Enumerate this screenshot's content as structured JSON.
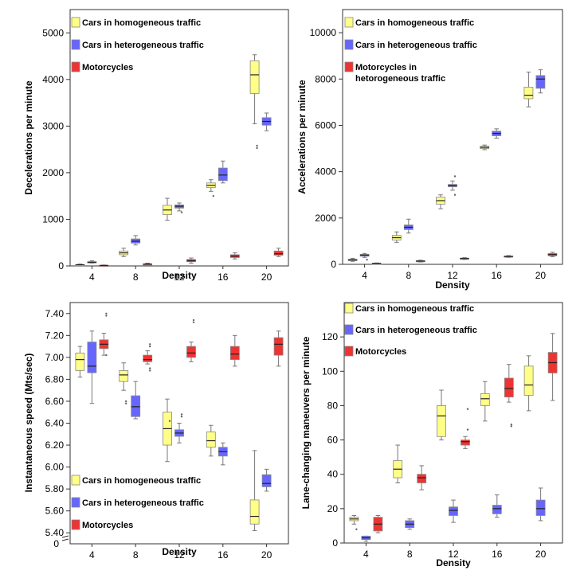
{
  "chart_data": [
    {
      "type": "box",
      "panel": "top-left",
      "xlabel": "Density",
      "ylabel": "Decelerations per minute",
      "categories": [
        "4",
        "8",
        "12",
        "16",
        "20"
      ],
      "ylim": [
        0,
        5500
      ],
      "yticks": [
        0,
        1000,
        2000,
        3000,
        4000,
        5000
      ],
      "legend_position": "top-left",
      "series": [
        {
          "name": "Cars in homogeneous traffic",
          "color": "#ffff88",
          "boxes": [
            {
              "min": 15,
              "q1": 20,
              "median": 25,
              "q3": 30,
              "max": 40
            },
            {
              "min": 200,
              "q1": 240,
              "median": 280,
              "q3": 320,
              "max": 380
            },
            {
              "min": 980,
              "q1": 1100,
              "median": 1200,
              "q3": 1300,
              "max": 1450
            },
            {
              "min": 1600,
              "q1": 1680,
              "median": 1730,
              "q3": 1780,
              "max": 1850
            },
            {
              "min": 3050,
              "q1": 3700,
              "median": 4100,
              "q3": 4400,
              "max": 4530
            }
          ],
          "outliers": [
            [
              16,
              1500
            ],
            [
              20,
              2530
            ],
            [
              20,
              2580
            ]
          ]
        },
        {
          "name": "Cars in heterogeneous traffic",
          "color": "#6666ff",
          "boxes": [
            {
              "min": 60,
              "q1": 70,
              "median": 80,
              "q3": 90,
              "max": 110
            },
            {
              "min": 450,
              "q1": 490,
              "median": 530,
              "q3": 580,
              "max": 650
            },
            {
              "min": 1180,
              "q1": 1240,
              "median": 1280,
              "q3": 1310,
              "max": 1350
            },
            {
              "min": 1780,
              "q1": 1830,
              "median": 1950,
              "q3": 2100,
              "max": 2250
            },
            {
              "min": 2900,
              "q1": 3020,
              "median": 3100,
              "q3": 3180,
              "max": 3280
            }
          ],
          "outliers": [
            [
              12,
              1150
            ]
          ]
        },
        {
          "name": "Motorcycles",
          "color": "#ee3333",
          "boxes": [
            {
              "min": 0,
              "q1": 5,
              "median": 10,
              "q3": 15,
              "max": 20
            },
            {
              "min": 30,
              "q1": 35,
              "median": 40,
              "q3": 45,
              "max": 60
            },
            {
              "min": 60,
              "q1": 90,
              "median": 110,
              "q3": 140,
              "max": 170
            },
            {
              "min": 150,
              "q1": 180,
              "median": 210,
              "q3": 240,
              "max": 280
            },
            {
              "min": 200,
              "q1": 230,
              "median": 260,
              "q3": 320,
              "max": 380
            }
          ],
          "outliers": []
        }
      ]
    },
    {
      "type": "box",
      "panel": "top-right",
      "xlabel": "Density",
      "ylabel": "Accelerations per minute",
      "categories": [
        "4",
        "8",
        "12",
        "16",
        "20"
      ],
      "ylim": [
        0,
        11000
      ],
      "yticks": [
        0,
        2000,
        4000,
        6000,
        8000,
        10000
      ],
      "legend_position": "top-left",
      "series": [
        {
          "name": "Cars in homogeneous traffic",
          "color": "#ffff88",
          "boxes": [
            {
              "min": 130,
              "q1": 160,
              "median": 190,
              "q3": 220,
              "max": 260
            },
            {
              "min": 950,
              "q1": 1050,
              "median": 1150,
              "q3": 1250,
              "max": 1400
            },
            {
              "min": 2400,
              "q1": 2600,
              "median": 2750,
              "q3": 2900,
              "max": 3000
            },
            {
              "min": 4950,
              "q1": 5000,
              "median": 5050,
              "q3": 5100,
              "max": 5150
            },
            {
              "min": 6800,
              "q1": 7150,
              "median": 7300,
              "q3": 7650,
              "max": 8300
            }
          ],
          "outliers": []
        },
        {
          "name": "Cars in heterogeneous traffic",
          "color": "#6666ff",
          "boxes": [
            {
              "min": 300,
              "q1": 350,
              "median": 400,
              "q3": 430,
              "max": 470
            },
            {
              "min": 1350,
              "q1": 1500,
              "median": 1600,
              "q3": 1700,
              "max": 1950
            },
            {
              "min": 3200,
              "q1": 3350,
              "median": 3400,
              "q3": 3450,
              "max": 3600
            },
            {
              "min": 5450,
              "q1": 5550,
              "median": 5650,
              "q3": 5750,
              "max": 5850
            },
            {
              "min": 7400,
              "q1": 7600,
              "median": 8000,
              "q3": 8150,
              "max": 8400
            }
          ],
          "outliers": [
            [
              4,
              200
            ],
            [
              12,
              3000
            ],
            [
              12,
              3800
            ]
          ]
        },
        {
          "name": "Motorcycles in hetorogeneous traffic",
          "color": "#ee3333",
          "boxes": [
            {
              "min": 20,
              "q1": 30,
              "median": 40,
              "q3": 50,
              "max": 60
            },
            {
              "min": 100,
              "q1": 120,
              "median": 140,
              "q3": 160,
              "max": 180
            },
            {
              "min": 210,
              "q1": 230,
              "median": 250,
              "q3": 270,
              "max": 290
            },
            {
              "min": 300,
              "q1": 320,
              "median": 340,
              "q3": 360,
              "max": 380
            },
            {
              "min": 330,
              "q1": 370,
              "median": 420,
              "q3": 470,
              "max": 520
            }
          ],
          "outliers": []
        }
      ]
    },
    {
      "type": "box",
      "panel": "bottom-left",
      "xlabel": "Density",
      "ylabel": "Instantaneous speed (Mts/sec)",
      "categories": [
        "4",
        "8",
        "12",
        "16",
        "20"
      ],
      "ylim": [
        5.3,
        7.5
      ],
      "yticks": [
        5.4,
        5.6,
        5.8,
        6.0,
        6.2,
        6.4,
        6.6,
        6.8,
        7.0,
        7.2,
        7.4
      ],
      "ytick_labels": [
        "5.40",
        "5.60",
        "5.80",
        "6.00",
        "6.20",
        "6.40",
        "6.60",
        "6.80",
        "7.00",
        "7.20",
        "7.40"
      ],
      "axis_break_label": "0",
      "legend_position": "bottom-left",
      "series": [
        {
          "name": "Cars in homogeneous traffic",
          "color": "#ffff88",
          "boxes": [
            {
              "min": 6.82,
              "q1": 6.88,
              "median": 6.98,
              "q3": 7.04,
              "max": 7.1
            },
            {
              "min": 6.7,
              "q1": 6.78,
              "median": 6.84,
              "q3": 6.88,
              "max": 6.95
            },
            {
              "min": 6.05,
              "q1": 6.2,
              "median": 6.35,
              "q3": 6.5,
              "max": 6.62
            },
            {
              "min": 6.1,
              "q1": 6.18,
              "median": 6.24,
              "q3": 6.32,
              "max": 6.38
            },
            {
              "min": 5.42,
              "q1": 5.48,
              "median": 5.55,
              "q3": 5.7,
              "max": 6.15
            }
          ],
          "outliers": [
            [
              8,
              6.58
            ],
            [
              8,
              6.6
            ],
            [
              12,
              6.42
            ]
          ]
        },
        {
          "name": "Cars in heterogeneous traffic",
          "color": "#6666ff",
          "boxes": [
            {
              "min": 6.58,
              "q1": 6.86,
              "median": 6.92,
              "q3": 7.14,
              "max": 7.24
            },
            {
              "min": 6.44,
              "q1": 6.46,
              "median": 6.55,
              "q3": 6.65,
              "max": 6.78
            },
            {
              "min": 6.22,
              "q1": 6.28,
              "median": 6.31,
              "q3": 6.34,
              "max": 6.4
            },
            {
              "min": 6.02,
              "q1": 6.1,
              "median": 6.14,
              "q3": 6.18,
              "max": 6.22
            },
            {
              "min": 5.78,
              "q1": 5.82,
              "median": 5.85,
              "q3": 5.93,
              "max": 5.98
            }
          ],
          "outliers": [
            [
              12,
              6.46
            ],
            [
              12,
              6.48
            ]
          ]
        },
        {
          "name": "Motorcycles",
          "color": "#ee3333",
          "boxes": [
            {
              "min": 7.02,
              "q1": 7.08,
              "median": 7.12,
              "q3": 7.16,
              "max": 7.22
            },
            {
              "min": 6.94,
              "q1": 6.96,
              "median": 6.98,
              "q3": 7.02,
              "max": 7.06
            },
            {
              "min": 6.96,
              "q1": 7.0,
              "median": 7.04,
              "q3": 7.1,
              "max": 7.14
            },
            {
              "min": 6.92,
              "q1": 6.98,
              "median": 7.03,
              "q3": 7.1,
              "max": 7.2
            },
            {
              "min": 6.92,
              "q1": 7.02,
              "median": 7.12,
              "q3": 7.18,
              "max": 7.24
            }
          ],
          "outliers": [
            [
              4,
              7.38
            ],
            [
              4,
              7.4
            ],
            [
              4,
              7.02
            ],
            [
              8,
              6.88
            ],
            [
              8,
              6.9
            ],
            [
              8,
              7.1
            ],
            [
              8,
              7.12
            ],
            [
              12,
              7.32
            ],
            [
              12,
              7.34
            ]
          ]
        }
      ]
    },
    {
      "type": "box",
      "panel": "bottom-right",
      "xlabel": "Density",
      "ylabel": "Lane-changing maneuvers  per minute",
      "categories": [
        "4",
        "8",
        "12",
        "16",
        "20"
      ],
      "ylim": [
        0,
        140
      ],
      "yticks": [
        0,
        20,
        40,
        60,
        80,
        100,
        120
      ],
      "legend_position": "top-left",
      "series": [
        {
          "name": "Cars in homogeneous traffic",
          "color": "#ffff88",
          "boxes": [
            {
              "min": 11,
              "q1": 13,
              "median": 14,
              "q3": 15,
              "max": 16
            },
            {
              "min": 35,
              "q1": 38,
              "median": 43,
              "q3": 48,
              "max": 57
            },
            {
              "min": 60,
              "q1": 62,
              "median": 74,
              "q3": 80,
              "max": 89
            },
            {
              "min": 71,
              "q1": 80,
              "median": 84,
              "q3": 87,
              "max": 94
            },
            {
              "min": 77,
              "q1": 86,
              "median": 92,
              "q3": 103,
              "max": 109
            }
          ],
          "outliers": [
            [
              4,
              8
            ]
          ]
        },
        {
          "name": "Cars in heterogeneous traffic",
          "color": "#6666ff",
          "boxes": [
            {
              "min": 1,
              "q1": 2,
              "median": 3,
              "q3": 4,
              "max": 4
            },
            {
              "min": 8,
              "q1": 9,
              "median": 11,
              "q3": 13,
              "max": 14
            },
            {
              "min": 12,
              "q1": 16,
              "median": 19,
              "q3": 21,
              "max": 25
            },
            {
              "min": 15,
              "q1": 17,
              "median": 20,
              "q3": 22,
              "max": 28
            },
            {
              "min": 13,
              "q1": 16,
              "median": 20,
              "q3": 25,
              "max": 32
            }
          ],
          "outliers": []
        },
        {
          "name": "Motorcycles",
          "color": "#ee3333",
          "boxes": [
            {
              "min": 6,
              "q1": 7,
              "median": 11,
              "q3": 15,
              "max": 16
            },
            {
              "min": 31,
              "q1": 35,
              "median": 38,
              "q3": 40,
              "max": 45
            },
            {
              "min": 55,
              "q1": 57,
              "median": 59,
              "q3": 60,
              "max": 62
            },
            {
              "min": 82,
              "q1": 85,
              "median": 90,
              "q3": 96,
              "max": 104
            },
            {
              "min": 83,
              "q1": 99,
              "median": 105,
              "q3": 111,
              "max": 122
            }
          ],
          "outliers": [
            [
              12,
              66
            ],
            [
              12,
              78
            ],
            [
              16,
              68
            ],
            [
              16,
              69
            ]
          ]
        }
      ]
    }
  ]
}
